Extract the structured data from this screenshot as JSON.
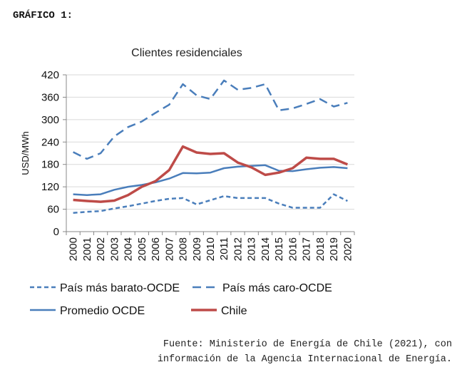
{
  "heading": "GRÁFICO 1:",
  "source": {
    "line1": "Fuente: Ministerio de Energía de Chile (2021), con",
    "line2": "información de la Agencia Internacional de Energía."
  },
  "colors": {
    "ocde_blue": "#4a7ebb",
    "chile_red": "#be4b48",
    "grid": "#d9d9d9"
  },
  "chart_data": {
    "type": "line",
    "title": "Clientes residenciales",
    "xlabel": "",
    "ylabel": "USD/MWh",
    "ylim": [
      0,
      420
    ],
    "yticks": [
      0,
      60,
      120,
      180,
      240,
      300,
      360,
      420
    ],
    "grid": true,
    "legend_position": "bottom",
    "x": [
      "2000",
      "2001",
      "2002",
      "2003",
      "2004",
      "2005",
      "2006",
      "2007",
      "2008",
      "2009",
      "2010",
      "2011",
      "2012",
      "2013",
      "2014",
      "2015",
      "2016",
      "2017",
      "2018",
      "2019",
      "2020"
    ],
    "series": [
      {
        "name": "País más barato-OCDE",
        "style": "dotted",
        "color": "#4a7ebb",
        "values": [
          50,
          53,
          55,
          62,
          68,
          75,
          82,
          88,
          90,
          73,
          84,
          95,
          90,
          90,
          90,
          75,
          64,
          64,
          64,
          100,
          82
        ]
      },
      {
        "name": "País más caro-OCDE",
        "style": "dashed",
        "color": "#4a7ebb",
        "values": [
          213,
          195,
          210,
          255,
          280,
          295,
          318,
          340,
          395,
          365,
          355,
          405,
          380,
          385,
          395,
          325,
          330,
          342,
          355,
          335,
          345
        ]
      },
      {
        "name": "Promedio OCDE",
        "style": "solid",
        "color": "#4a7ebb",
        "values": [
          100,
          98,
          100,
          112,
          120,
          125,
          132,
          142,
          157,
          156,
          158,
          170,
          174,
          176,
          178,
          163,
          162,
          167,
          171,
          173,
          170
        ]
      },
      {
        "name": "Chile",
        "style": "solid-thick",
        "color": "#be4b48",
        "values": [
          85,
          82,
          80,
          83,
          98,
          120,
          135,
          165,
          228,
          212,
          208,
          210,
          185,
          172,
          152,
          158,
          170,
          198,
          195,
          195,
          180
        ]
      }
    ]
  }
}
